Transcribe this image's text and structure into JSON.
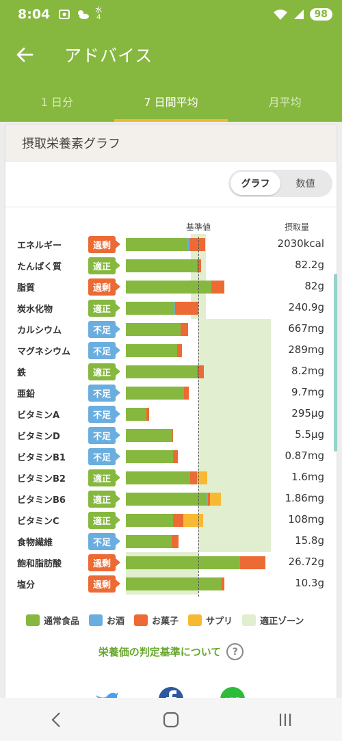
{
  "status_bar": {
    "time": "8:04",
    "weather_digit_top": "水",
    "weather_digit_bottom": "4",
    "battery": "98"
  },
  "appbar": {
    "title": "アドバイス"
  },
  "tabs": [
    {
      "label": "1 日分",
      "active": false
    },
    {
      "label": "7 日間平均",
      "active": true
    },
    {
      "label": "月平均",
      "active": false
    }
  ],
  "card": {
    "title": "摂取栄養素グラフ"
  },
  "toggle": {
    "graph": "グラフ",
    "numeric": "数値"
  },
  "columns": {
    "reference": "基準値",
    "intake": "摂取量"
  },
  "colors": {
    "normal_food": "#86b83f",
    "alcohol": "#6aaee0",
    "snacks": "#ec6a34",
    "supplement": "#f7b932",
    "proper_zone": "#e1eecf"
  },
  "status_labels": {
    "excess": "過剰",
    "proper": "適正",
    "lack": "不足"
  },
  "chart_data": {
    "type": "bar",
    "reference_line_percent": 100,
    "rows": [
      {
        "name": "エネルギー",
        "status": "過剰",
        "value": "2030kcal",
        "normal": 85,
        "alcohol": 3,
        "snacks": 21,
        "supplement": 0,
        "zone": [
          90,
          110
        ]
      },
      {
        "name": "たんぱく質",
        "status": "適正",
        "value": "82.2g",
        "normal": 98,
        "alcohol": 0,
        "snacks": 6,
        "supplement": 0,
        "zone": [
          90,
          110
        ]
      },
      {
        "name": "脂質",
        "status": "過剰",
        "value": "82g",
        "normal": 118,
        "alcohol": 0,
        "snacks": 18,
        "supplement": 0,
        "zone": [
          90,
          110
        ]
      },
      {
        "name": "炭水化物",
        "status": "適正",
        "value": "240.9g",
        "normal": 67,
        "alcohol": 1,
        "snacks": 32,
        "supplement": 0,
        "zone": [
          90,
          110
        ]
      },
      {
        "name": "カルシウム",
        "status": "不足",
        "value": "667mg",
        "normal": 75,
        "alcohol": 0,
        "snacks": 11,
        "supplement": 0,
        "zone": [
          100,
          200
        ]
      },
      {
        "name": "マグネシウム",
        "status": "不足",
        "value": "289mg",
        "normal": 71,
        "alcohol": 0,
        "snacks": 6,
        "supplement": 0,
        "zone": [
          100,
          200
        ]
      },
      {
        "name": "鉄",
        "status": "適正",
        "value": "8.2mg",
        "normal": 98,
        "alcohol": 0,
        "snacks": 10,
        "supplement": 0,
        "zone": [
          100,
          200
        ]
      },
      {
        "name": "亜鉛",
        "status": "不足",
        "value": "9.7mg",
        "normal": 80,
        "alcohol": 0,
        "snacks": 7,
        "supplement": 0,
        "zone": [
          100,
          200
        ]
      },
      {
        "name": "ビタミンA",
        "status": "不足",
        "value": "295µg",
        "normal": 28,
        "alcohol": 0,
        "snacks": 4,
        "supplement": 0,
        "zone": [
          100,
          200
        ]
      },
      {
        "name": "ビタミンD",
        "status": "不足",
        "value": "5.5µg",
        "normal": 64,
        "alcohol": 0,
        "snacks": 1,
        "supplement": 0,
        "zone": [
          100,
          200
        ]
      },
      {
        "name": "ビタミンB1",
        "status": "不足",
        "value": "0.87mg",
        "normal": 65,
        "alcohol": 0,
        "snacks": 7,
        "supplement": 0,
        "zone": [
          100,
          200
        ]
      },
      {
        "name": "ビタミンB2",
        "status": "適正",
        "value": "1.6mg",
        "normal": 89,
        "alcohol": 0,
        "snacks": 9,
        "supplement": 14,
        "zone": [
          100,
          200
        ]
      },
      {
        "name": "ビタミンB6",
        "status": "適正",
        "value": "1.86mg",
        "normal": 111,
        "alcohol": 2,
        "snacks": 3,
        "supplement": 15,
        "zone": [
          100,
          200
        ]
      },
      {
        "name": "ビタミンC",
        "status": "適正",
        "value": "108mg",
        "normal": 65,
        "alcohol": 0,
        "snacks": 14,
        "supplement": 28,
        "zone": [
          100,
          200
        ]
      },
      {
        "name": "食物繊維",
        "status": "不足",
        "value": "15.8g",
        "normal": 63,
        "alcohol": 0,
        "snacks": 10,
        "supplement": 0,
        "zone": [
          100,
          200
        ]
      },
      {
        "name": "飽和脂肪酸",
        "status": "過剰",
        "value": "26.72g",
        "normal": 158,
        "alcohol": 0,
        "snacks": 34,
        "supplement": 0,
        "zone": [
          0,
          100
        ]
      },
      {
        "name": "塩分",
        "status": "過剰",
        "value": "10.3g",
        "normal": 132,
        "alcohol": 0,
        "snacks": 4,
        "supplement": 0,
        "zone": [
          0,
          100
        ]
      }
    ]
  },
  "legend": [
    "通常食品",
    "お酒",
    "お菓子",
    "サプリ",
    "適正ゾーン"
  ],
  "criteria_link": "栄養価の判定基準について",
  "help_symbol": "?",
  "social": [
    "twitter-icon",
    "facebook-icon",
    "line-icon"
  ]
}
